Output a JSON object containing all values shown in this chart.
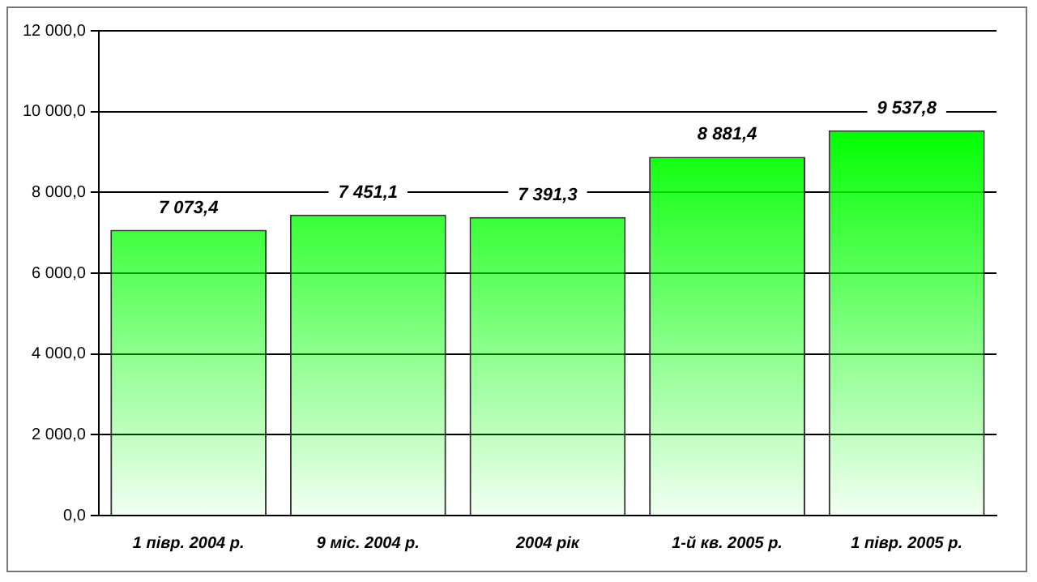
{
  "chart_data": {
    "type": "bar",
    "categories": [
      "1 півр. 2004 р.",
      "9 міс. 2004 р.",
      "2004 рік",
      "1-й кв. 2005 р.",
      "1 півр. 2005 р."
    ],
    "values": [
      7073.4,
      7451.1,
      7391.3,
      8881.4,
      9537.8
    ],
    "value_labels": [
      "7 073,4",
      "7 451,1",
      "7 391,3",
      "8 881,4",
      "9 537,8"
    ],
    "color": "#00ff00",
    "ylim": [
      0,
      12000
    ],
    "yticks": [
      {
        "value": 0,
        "label": "0,0"
      },
      {
        "value": 2000,
        "label": "2 000,0"
      },
      {
        "value": 4000,
        "label": "4 000,0"
      },
      {
        "value": 6000,
        "label": "6 000,0"
      },
      {
        "value": 8000,
        "label": "8 000,0"
      },
      {
        "value": 10000,
        "label": "10 000,0"
      },
      {
        "value": 12000,
        "label": "12 000,0"
      }
    ],
    "grid": "y",
    "legend": false
  }
}
